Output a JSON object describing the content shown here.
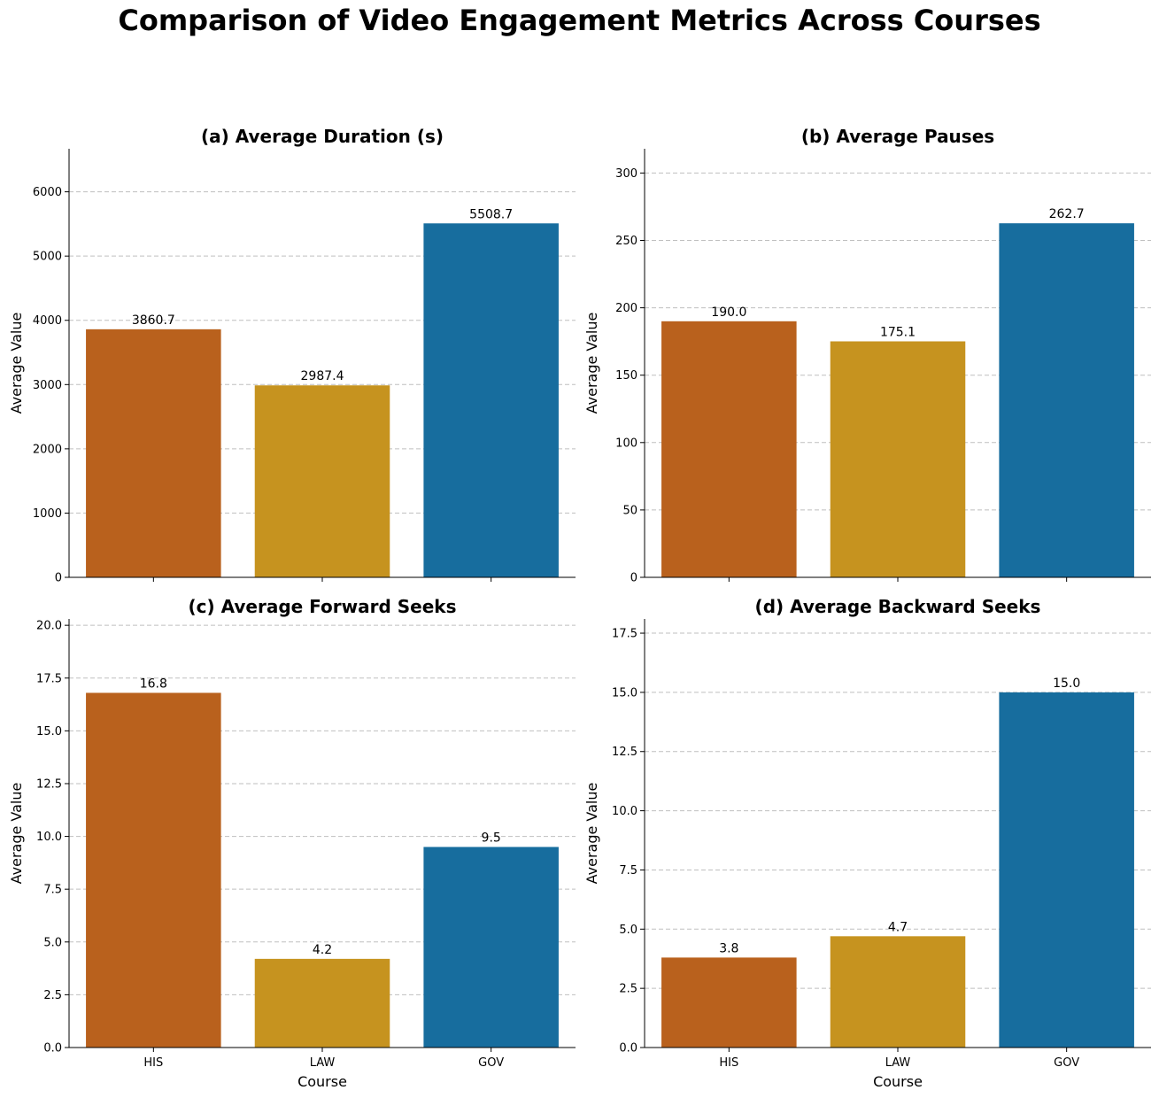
{
  "title": "Comparison of Video Engagement Metrics Across Courses",
  "chart_data": [
    {
      "type": "bar",
      "title": "(a) Average Duration (s)",
      "xlabel": "",
      "ylabel": "Average Value",
      "categories": [
        "HIS",
        "LAW",
        "GOV"
      ],
      "values": [
        3860.7,
        2987.4,
        5508.7
      ],
      "value_labels": [
        "3860.7",
        "2987.4",
        "5508.7"
      ],
      "ylim": [
        0,
        6670
      ],
      "yticks": [
        0,
        1000,
        2000,
        3000,
        4000,
        5000,
        6000
      ],
      "ytick_labels": [
        "0",
        "1000",
        "2000",
        "3000",
        "4000",
        "5000",
        "6000"
      ],
      "show_xtick_labels": false,
      "grid": "y",
      "colors": [
        "#b9611d",
        "#c6931f",
        "#176d9e"
      ]
    },
    {
      "type": "bar",
      "title": "(b) Average Pauses",
      "xlabel": "",
      "ylabel": "Average Value",
      "categories": [
        "HIS",
        "LAW",
        "GOV"
      ],
      "values": [
        190.0,
        175.1,
        262.7
      ],
      "value_labels": [
        "190.0",
        "175.1",
        "262.7"
      ],
      "ylim": [
        0,
        318
      ],
      "yticks": [
        0,
        50,
        100,
        150,
        200,
        250,
        300
      ],
      "ytick_labels": [
        "0",
        "50",
        "100",
        "150",
        "200",
        "250",
        "300"
      ],
      "show_xtick_labels": false,
      "grid": "y",
      "colors": [
        "#b9611d",
        "#c6931f",
        "#176d9e"
      ]
    },
    {
      "type": "bar",
      "title": "(c) Average Forward Seeks",
      "xlabel": "Course",
      "ylabel": "Average Value",
      "categories": [
        "HIS",
        "LAW",
        "GOV"
      ],
      "values": [
        16.8,
        4.2,
        9.5
      ],
      "value_labels": [
        "16.8",
        "4.2",
        "9.5"
      ],
      "ylim": [
        0,
        20.3
      ],
      "yticks": [
        0,
        2.5,
        5,
        7.5,
        10,
        12.5,
        15,
        17.5,
        20
      ],
      "ytick_labels": [
        "0.0",
        "2.5",
        "5.0",
        "7.5",
        "10.0",
        "12.5",
        "15.0",
        "17.5",
        "20.0"
      ],
      "show_xtick_labels": true,
      "grid": "y",
      "colors": [
        "#b9611d",
        "#c6931f",
        "#176d9e"
      ]
    },
    {
      "type": "bar",
      "title": "(d) Average Backward Seeks",
      "xlabel": "Course",
      "ylabel": "Average Value",
      "categories": [
        "HIS",
        "LAW",
        "GOV"
      ],
      "values": [
        3.8,
        4.7,
        15.0
      ],
      "value_labels": [
        "3.8",
        "4.7",
        "15.0"
      ],
      "ylim": [
        0,
        18.1
      ],
      "yticks": [
        0,
        2.5,
        5,
        7.5,
        10,
        12.5,
        15,
        17.5
      ],
      "ytick_labels": [
        "0.0",
        "2.5",
        "5.0",
        "7.5",
        "10.0",
        "12.5",
        "15.0",
        "17.5"
      ],
      "show_xtick_labels": true,
      "grid": "y",
      "colors": [
        "#b9611d",
        "#c6931f",
        "#176d9e"
      ]
    }
  ]
}
